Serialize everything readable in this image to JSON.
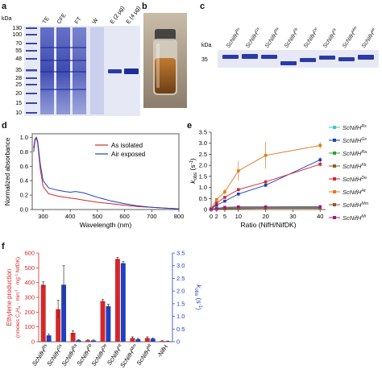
{
  "panels": {
    "a": {
      "label": "a",
      "kda": "kDa",
      "markers": [
        "130",
        "100",
        "70",
        "55",
        "48",
        "35",
        "28",
        "25",
        "20",
        "15",
        "10"
      ],
      "lanes": [
        "TE",
        "CFE",
        "FT",
        "W",
        "E (2 µg)",
        "E (4 µg)"
      ]
    },
    "b": {
      "label": "b"
    },
    "c": {
      "label": "c",
      "kda": "kDa",
      "marker": "35",
      "lanes": [
        {
          "base": "ScNifH",
          "sup": "Rs"
        },
        {
          "base": "ScNifH",
          "sup": "Gs"
        },
        {
          "base": "ScNifH",
          "sup": "Ra"
        },
        {
          "base": "ScNifH",
          "sup": "Fb"
        },
        {
          "base": "ScNifH",
          "sup": "De"
        },
        {
          "base": "ScNifH",
          "sup": "Ht"
        },
        {
          "base": "ScNifH",
          "sup": "Mm"
        },
        {
          "base": "ScNifH",
          "sup": "Mi"
        }
      ]
    },
    "d": {
      "label": "d"
    },
    "e": {
      "label": "e"
    },
    "f": {
      "label": "f"
    }
  },
  "colors": {
    "gel_bg": "#e6e9f5",
    "band": "#2b3aa8",
    "red": "#d62728",
    "blue": "#1f3fbf",
    "orange": "#e07b20",
    "cyan": "#3fc7c7",
    "green": "#2ca02c",
    "purple": "#a01a7d",
    "brown": "#8b5a2b"
  },
  "chart_data": [
    {
      "id": "d",
      "type": "line",
      "title": "",
      "xlabel": "Wavelength (nm)",
      "ylabel": "Normalized absorbance",
      "xlim": [
        260,
        800
      ],
      "ylim": [
        0,
        1.05
      ],
      "xticks": [
        "300",
        "400",
        "500",
        "600",
        "700",
        "800"
      ],
      "yticks": [
        "0.0",
        "0.2",
        "0.4",
        "0.6",
        "0.8",
        "1.0"
      ],
      "legend": "top-right",
      "series": [
        {
          "name": "As isolated",
          "color": "#d62728",
          "x": [
            265,
            270,
            275,
            280,
            290,
            300,
            320,
            350,
            380,
            400,
            420,
            450,
            500,
            550,
            600,
            650,
            700,
            750,
            800
          ],
          "y": [
            0.85,
            0.98,
            1.0,
            0.92,
            0.55,
            0.32,
            0.22,
            0.19,
            0.17,
            0.16,
            0.15,
            0.13,
            0.1,
            0.08,
            0.06,
            0.04,
            0.03,
            0.02,
            0.01
          ]
        },
        {
          "name": "Air exposed",
          "color": "#1f3fbf",
          "x": [
            265,
            270,
            275,
            280,
            290,
            300,
            320,
            350,
            380,
            400,
            420,
            450,
            500,
            550,
            600,
            650,
            700,
            750,
            800
          ],
          "y": [
            0.8,
            0.95,
            1.0,
            0.95,
            0.62,
            0.4,
            0.3,
            0.27,
            0.25,
            0.24,
            0.25,
            0.23,
            0.17,
            0.12,
            0.08,
            0.05,
            0.03,
            0.02,
            0.01
          ]
        }
      ]
    },
    {
      "id": "e",
      "type": "line",
      "title": "",
      "xlabel": "Ratio (NifH/NifDK)",
      "ylabel_main": "k",
      "ylabel_sub": "obs",
      "ylabel_unit": " (s",
      "ylabel_exp": "-1",
      "ylabel_close": ")",
      "xlim": [
        0,
        42
      ],
      "ylim": [
        0,
        3.5
      ],
      "xticks": [
        0,
        2,
        5,
        10,
        20,
        30,
        40
      ],
      "xticklabels": [
        "0",
        "2",
        "5",
        "10",
        "20",
        "30",
        "40"
      ],
      "yticks": [
        "0",
        "0.5",
        "1.0",
        "1.5",
        "2.0",
        "2.5",
        "3.0",
        "3.5"
      ],
      "legend": "right",
      "x": [
        0,
        2,
        5,
        10,
        20,
        40
      ],
      "series": [
        {
          "base": "ScNifH",
          "sup": "Rs",
          "color": "#3fc7c7",
          "y": [
            0.02,
            0.06,
            0.08,
            0.1,
            0.1,
            0.1
          ],
          "err": [
            0.01,
            0.02,
            0.02,
            0.03,
            0.03,
            0.03
          ]
        },
        {
          "base": "ScNifH",
          "sup": "Gs",
          "color": "#1f3fbf",
          "y": [
            0.03,
            0.2,
            0.38,
            0.7,
            1.1,
            2.25
          ],
          "err": [
            0.01,
            0.03,
            0.05,
            0.07,
            0.08,
            0.1
          ]
        },
        {
          "base": "ScNifH",
          "sup": "Ra",
          "color": "#2ca02c",
          "y": [
            0.01,
            0.03,
            0.05,
            0.08,
            0.08,
            0.08
          ],
          "err": [
            0.01,
            0.01,
            0.02,
            0.02,
            0.02,
            0.02
          ]
        },
        {
          "base": "ScNifH",
          "sup": "Fb",
          "color": "#8b5a2b",
          "y": [
            0.01,
            0.02,
            0.03,
            0.05,
            0.05,
            0.06
          ],
          "err": [
            0.01,
            0.01,
            0.01,
            0.02,
            0.02,
            0.02
          ]
        },
        {
          "base": "ScNifH",
          "sup": "De",
          "color": "#d62728",
          "y": [
            0.03,
            0.3,
            0.55,
            0.9,
            1.25,
            2.05
          ],
          "err": [
            0.01,
            0.04,
            0.05,
            0.07,
            0.08,
            0.1
          ]
        },
        {
          "base": "ScNifH",
          "sup": "Ht",
          "color": "#e07b20",
          "y": [
            0.05,
            0.45,
            0.8,
            1.75,
            2.45,
            2.9
          ],
          "err": [
            0.02,
            0.08,
            0.12,
            0.45,
            0.6,
            0.15
          ]
        },
        {
          "base": "ScNifH",
          "sup": "Mm",
          "color": "#8b5a2b",
          "y": [
            0.01,
            0.02,
            0.03,
            0.04,
            0.05,
            0.05
          ],
          "err": [
            0.01,
            0.01,
            0.01,
            0.01,
            0.01,
            0.01
          ]
        },
        {
          "base": "ScNifH",
          "sup": "Mi",
          "color": "#a01a7d",
          "y": [
            0.02,
            0.05,
            0.1,
            0.12,
            0.12,
            0.13
          ],
          "err": [
            0.01,
            0.01,
            0.02,
            0.03,
            0.03,
            0.03
          ]
        }
      ]
    },
    {
      "id": "f",
      "type": "bar",
      "title": "",
      "ylabel_left_l1": "Ethylene production",
      "ylabel_left_l2a": "(nmoles C",
      "ylabel_left_l2sub1": "2",
      "ylabel_left_l2b": "H",
      "ylabel_left_l2sub2": "4",
      "ylabel_left_l2c": " · min",
      "ylabel_left_l2sup1": "-1",
      "ylabel_left_l2d": " · mg",
      "ylabel_left_l2sup2": "-1",
      "ylabel_left_l2e": " NifDK)",
      "ylabel_right_main": "k",
      "ylabel_right_sub": "obs",
      "ylabel_right_unit": " (s",
      "ylabel_right_exp": "-1",
      "ylabel_right_close": ")",
      "ylim_left": [
        0,
        600
      ],
      "ylim_right": [
        0,
        3.5
      ],
      "yticks_left": [
        "0",
        "100",
        "200",
        "300",
        "400",
        "500",
        "600"
      ],
      "yticks_right": [
        "0",
        "0.5",
        "1.0",
        "1.5",
        "2.0",
        "2.5",
        "3.0",
        "3.5"
      ],
      "categories": [
        {
          "base": "ScNifH",
          "sup": "Rs"
        },
        {
          "base": "ScNifH",
          "sup": "Gs"
        },
        {
          "base": "ScNifH",
          "sup": "Ra"
        },
        {
          "base": "ScNifH",
          "sup": "Fb"
        },
        {
          "base": "ScNifH",
          "sup": "De"
        },
        {
          "base": "ScNifH",
          "sup": "Ht"
        },
        {
          "base": "ScNifH",
          "sup": "Mm"
        },
        {
          "base": "ScNifH",
          "sup": "Mi"
        },
        {
          "base": "-NifH",
          "sup": ""
        }
      ],
      "series": [
        {
          "axis": "left",
          "color": "#d62728",
          "values": [
            385,
            220,
            60,
            10,
            275,
            560,
            25,
            25,
            5
          ],
          "err": [
            20,
            60,
            15,
            5,
            10,
            10,
            8,
            8,
            2
          ]
        },
        {
          "axis": "right",
          "color": "#1f3fbf",
          "values": [
            0.25,
            2.25,
            0.06,
            0.05,
            1.4,
            3.1,
            0.1,
            0.12,
            0.02
          ],
          "err": [
            0.05,
            0.75,
            0.02,
            0.02,
            0.08,
            0.06,
            0.03,
            0.03,
            0.01
          ]
        }
      ]
    }
  ]
}
